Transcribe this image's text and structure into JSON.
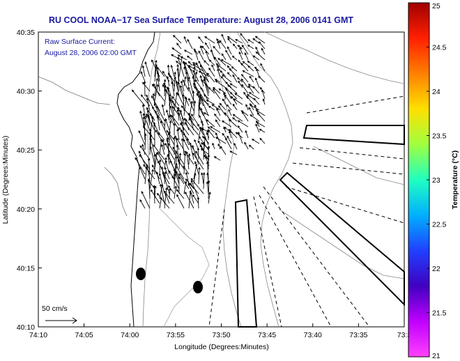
{
  "title": "RU COOL  NOAA−17  Sea Surface Temperature:  August 28, 2006 0141 GMT",
  "legend": {
    "line1": "Raw Surface Current:",
    "line2": "August 28, 2006 02:00 GMT",
    "scale_label": "50 cm/s"
  },
  "axes": {
    "xlabel": "Longitude (Degrees:Minutes)",
    "ylabel": "Latitude (Degrees:Minutes)",
    "x_ticks": [
      "74:10",
      "74:05",
      "74:00",
      "73:55",
      "73:50",
      "73:45",
      "73:40",
      "73:35",
      "73:3"
    ],
    "y_ticks": [
      "40:35",
      "40:30",
      "40:25",
      "40:20",
      "40:15",
      "40:10"
    ]
  },
  "colorbar": {
    "label": "Temperature (°C)",
    "ticks": [
      "25",
      "24.5",
      "24",
      "23.5",
      "23",
      "22.5",
      "22",
      "21.5",
      "21"
    ],
    "colors": [
      "#a00000",
      "#ff2000",
      "#ff8000",
      "#ffe000",
      "#a0ff40",
      "#20ffc0",
      "#00b0ff",
      "#2040ff",
      "#4000c0",
      "#c000ff",
      "#ff40ff"
    ]
  },
  "colors": {
    "title": "#1a1aa0",
    "legend_text": "#1a1aa0"
  }
}
